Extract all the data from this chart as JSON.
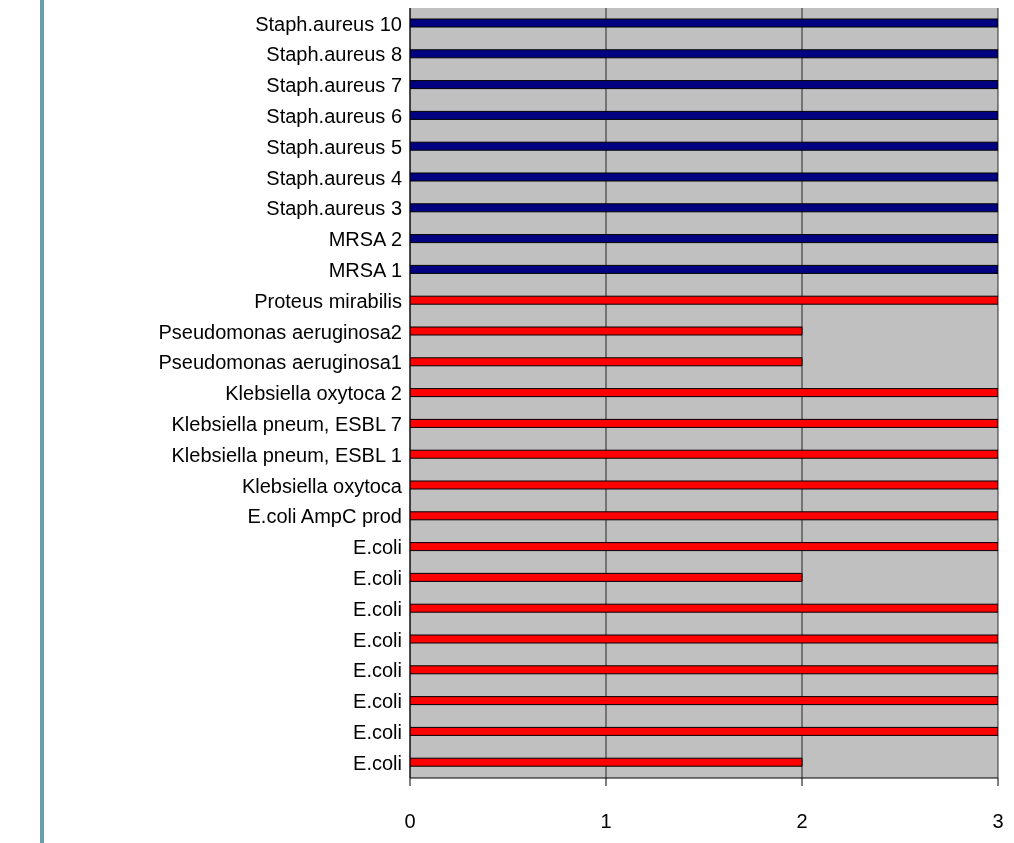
{
  "chart_data": {
    "type": "bar",
    "orientation": "horizontal",
    "categories": [
      "Staph.aureus 10",
      "Staph.aureus 8",
      "Staph.aureus 7",
      "Staph.aureus 6",
      "Staph.aureus 5",
      "Staph.aureus 4",
      "Staph.aureus 3",
      "MRSA 2",
      "MRSA 1",
      "Proteus mirabilis",
      "Pseudomonas aeruginosa2",
      "Pseudomonas aeruginosa1",
      "Klebsiella oxytoca 2",
      "Klebsiella pneum, ESBL 7",
      "Klebsiella pneum, ESBL 1",
      "Klebsiella oxytoca",
      "E.coli AmpC prod",
      "E.coli",
      "E.coli",
      "E.coli",
      "E.coli",
      "E.coli",
      "E.coli",
      "E.coli",
      "E.coli"
    ],
    "values": [
      3,
      3,
      3,
      3,
      3,
      3,
      3,
      3,
      3,
      3,
      2,
      2,
      3,
      3,
      3,
      3,
      3,
      3,
      2,
      3,
      3,
      3,
      3,
      3,
      2
    ],
    "colors": [
      "#000080",
      "#000080",
      "#000080",
      "#000080",
      "#000080",
      "#000080",
      "#000080",
      "#000080",
      "#000080",
      "#ff0000",
      "#ff0000",
      "#ff0000",
      "#ff0000",
      "#ff0000",
      "#ff0000",
      "#ff0000",
      "#ff0000",
      "#ff0000",
      "#ff0000",
      "#ff0000",
      "#ff0000",
      "#ff0000",
      "#ff0000",
      "#ff0000",
      "#ff0000"
    ],
    "xlim": [
      0,
      3
    ],
    "xticks": [
      0,
      1,
      2,
      3
    ],
    "grid": "x",
    "legend": false
  }
}
